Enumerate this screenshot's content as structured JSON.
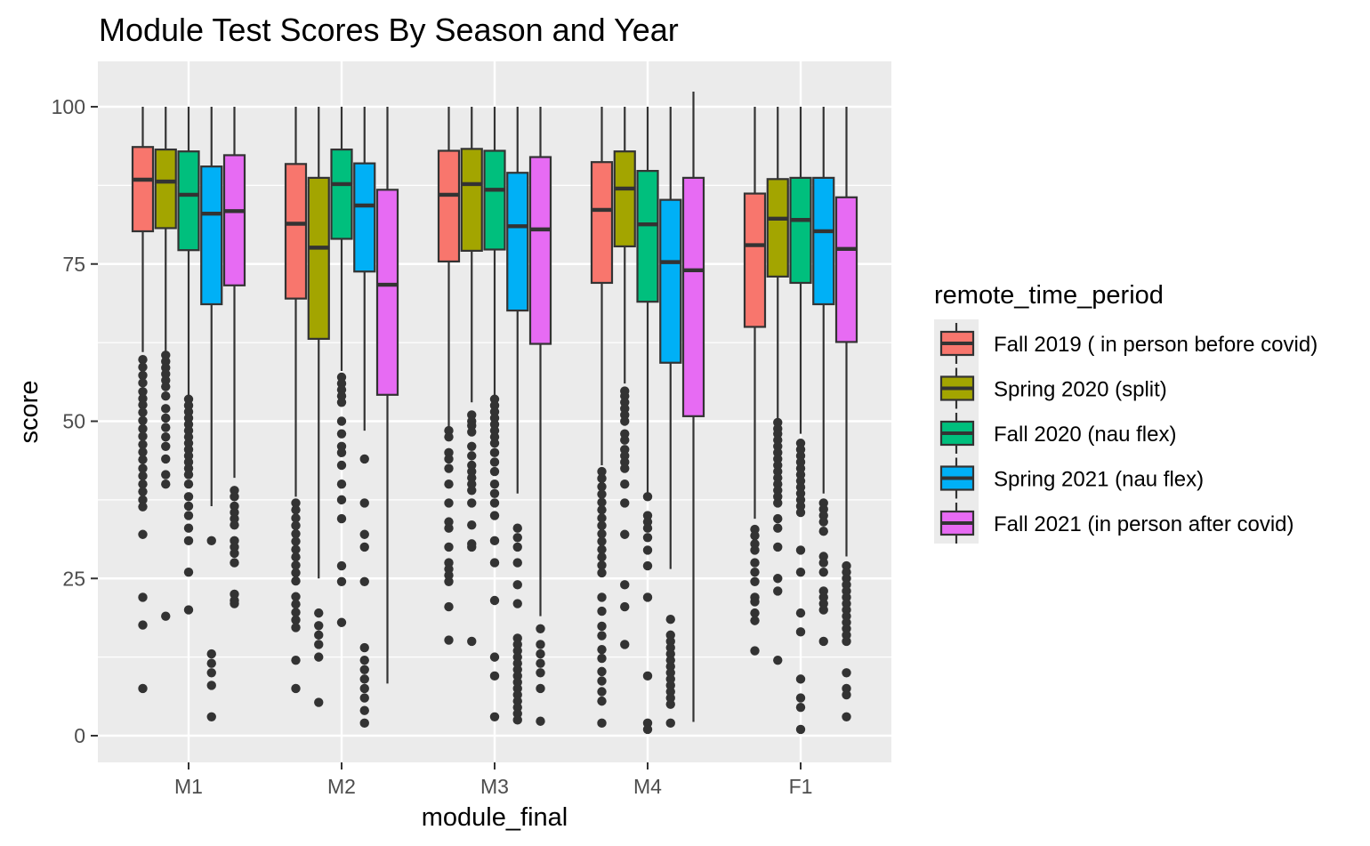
{
  "chart_data": {
    "type": "boxplot",
    "title": "Module Test Scores By Season and Year",
    "xlabel": "module_final",
    "ylabel": "score",
    "ylim": [
      -4,
      106
    ],
    "yticks": [
      0,
      25,
      50,
      75,
      100
    ],
    "categories": [
      "M1",
      "M2",
      "M3",
      "M4",
      "F1"
    ],
    "legend": {
      "title": "remote_time_period",
      "position": "right"
    },
    "grid": true,
    "series": [
      {
        "name": "Fall 2019 ( in person before covid)",
        "color": "#F8766D",
        "boxes": [
          {
            "category": "M1",
            "lower_whisker": 61,
            "q1": 80.2,
            "median": 88.4,
            "q3": 93.6,
            "upper_whisker": 100,
            "outliers": [
              59.8,
              58.6,
              57.3,
              56.1,
              54.7,
              53.6,
              52.6,
              51.4,
              50.1,
              48.8,
              47.6,
              46.3,
              45.1,
              43.9,
              42.5,
              41.3,
              40,
              38.8,
              37.5,
              36.4,
              32,
              22,
              17.6,
              7.5
            ]
          },
          {
            "category": "M2",
            "lower_whisker": 38,
            "q1": 69.5,
            "median": 81.4,
            "q3": 90.9,
            "upper_whisker": 100,
            "outliers": [
              37,
              35.9,
              34.6,
              33.4,
              32.1,
              30.9,
              29.6,
              28.4,
              27.1,
              25.9,
              24.6,
              22.1,
              20.9,
              19.6,
              18.4,
              17.2,
              12,
              7.5
            ]
          },
          {
            "category": "M3",
            "lower_whisker": 49,
            "q1": 75.4,
            "median": 86,
            "q3": 93,
            "upper_whisker": 100,
            "outliers": [
              48.5,
              47.5,
              45,
              44,
              42.5,
              40,
              37,
              34,
              33,
              30,
              27.5,
              26.5,
              25.5,
              24.5,
              20.5,
              15.2
            ]
          },
          {
            "category": "M4",
            "lower_whisker": 43,
            "q1": 72,
            "median": 83.6,
            "q3": 91.2,
            "upper_whisker": 100,
            "outliers": [
              42,
              40.9,
              39.6,
              38.4,
              37.1,
              35.9,
              34.6,
              33.4,
              32.1,
              30.9,
              29.6,
              28.4,
              27.1,
              25.9,
              22,
              19.8,
              17.4,
              15.9,
              13.7,
              12.3,
              10.2,
              8.7,
              7,
              5.5,
              2
            ]
          },
          {
            "category": "F1",
            "lower_whisker": 34.5,
            "q1": 65,
            "median": 78,
            "q3": 86.2,
            "upper_whisker": 100,
            "outliers": [
              32.8,
              31.8,
              30.5,
              29.5,
              27.5,
              26,
              24.5,
              22,
              21.3,
              19.5,
              18.3,
              13.5
            ]
          }
        ]
      },
      {
        "name": "Spring 2020 (split)",
        "color": "#A3A500",
        "boxes": [
          {
            "category": "M1",
            "lower_whisker": 61,
            "q1": 80.7,
            "median": 88.1,
            "q3": 93.2,
            "upper_whisker": 100,
            "outliers": [
              60.5,
              59.5,
              58.5,
              57.5,
              56.5,
              55.5,
              54,
              52,
              50.5,
              49,
              47.5,
              46,
              44,
              41.5,
              40,
              19
            ]
          },
          {
            "category": "M2",
            "lower_whisker": 25,
            "q1": 63.1,
            "median": 77.6,
            "q3": 88.7,
            "upper_whisker": 100,
            "outliers": [
              19.5,
              17.5,
              16,
              14.5,
              12.5,
              5.3
            ]
          },
          {
            "category": "M3",
            "lower_whisker": 53,
            "q1": 77.1,
            "median": 87.7,
            "q3": 93.3,
            "upper_whisker": 100,
            "outliers": [
              51,
              50,
              49.3,
              48.3,
              46,
              44.5,
              43,
              42,
              41,
              40,
              39,
              37,
              33.5,
              30.5,
              30,
              15
            ]
          },
          {
            "category": "M4",
            "lower_whisker": 56,
            "q1": 77.8,
            "median": 87,
            "q3": 92.9,
            "upper_whisker": 100,
            "outliers": [
              54.8,
              54,
              53,
              52,
              51,
              50,
              48,
              47,
              45.5,
              44.5,
              43.5,
              42.5,
              40,
              37,
              32,
              24,
              20.5,
              14.5
            ]
          },
          {
            "category": "F1",
            "lower_whisker": 50.5,
            "q1": 73,
            "median": 82.2,
            "q3": 88.5,
            "upper_whisker": 100,
            "outliers": [
              49.8,
              48.8,
              48,
              47,
              46,
              45,
              44,
              43,
              42,
              41,
              40,
              39,
              38,
              37,
              34.5,
              33,
              30,
              25,
              23,
              12
            ]
          }
        ]
      },
      {
        "name": "Fall 2020 (nau flex)",
        "color": "#00BF7D",
        "boxes": [
          {
            "category": "M1",
            "lower_whisker": 54,
            "q1": 77.2,
            "median": 86,
            "q3": 92.9,
            "upper_whisker": 100,
            "outliers": [
              53.5,
              52.5,
              51.5,
              50.5,
              49.5,
              48.5,
              47.5,
              46.5,
              45.5,
              44.5,
              43.5,
              42.5,
              41.5,
              40,
              38,
              36.5,
              35,
              33,
              31,
              26,
              20
            ]
          },
          {
            "category": "M2",
            "lower_whisker": 58,
            "q1": 79,
            "median": 87.7,
            "q3": 93.2,
            "upper_whisker": 100,
            "outliers": [
              57,
              56,
              55,
              54,
              53,
              50,
              48,
              46,
              45,
              43,
              40,
              37.5,
              34.5,
              27,
              24.5,
              18
            ]
          },
          {
            "category": "M3",
            "lower_whisker": 54,
            "q1": 77.3,
            "median": 86.8,
            "q3": 93,
            "upper_whisker": 100,
            "outliers": [
              53.5,
              52.5,
              51.5,
              50.5,
              49.5,
              48.5,
              47.5,
              46.5,
              45,
              43.5,
              42,
              40,
              38.5,
              37,
              35,
              31,
              27.5,
              21.5,
              12.5,
              9.5,
              3
            ]
          },
          {
            "category": "M4",
            "lower_whisker": 38.5,
            "q1": 69,
            "median": 81.3,
            "q3": 89.8,
            "upper_whisker": 100,
            "outliers": [
              38,
              35,
              34,
              33,
              31.5,
              29.5,
              27,
              22,
              9.5,
              2,
              1
            ]
          },
          {
            "category": "F1",
            "lower_whisker": 48,
            "q1": 72,
            "median": 82,
            "q3": 88.7,
            "upper_whisker": 100,
            "outliers": [
              46.5,
              45.5,
              44.5,
              43.5,
              42.5,
              41.5,
              40.5,
              39.5,
              38.5,
              37.5,
              36.5,
              35.5,
              29.5,
              26,
              19.5,
              16.5,
              9,
              6,
              4.5,
              1
            ]
          }
        ]
      },
      {
        "name": "Spring 2021 (nau flex)",
        "color": "#00B0F6",
        "boxes": [
          {
            "category": "M1",
            "lower_whisker": 36.5,
            "q1": 68.6,
            "median": 83,
            "q3": 90.5,
            "upper_whisker": 100,
            "outliers": [
              31,
              13,
              11.5,
              10,
              8,
              3
            ]
          },
          {
            "category": "M2",
            "lower_whisker": 48.5,
            "q1": 73.8,
            "median": 84.3,
            "q3": 91,
            "upper_whisker": 100,
            "outliers": [
              44,
              37,
              32,
              30,
              24.5,
              14,
              12,
              10.5,
              9,
              7.5,
              6,
              4,
              2
            ]
          },
          {
            "category": "M3",
            "lower_whisker": 38.5,
            "q1": 67.6,
            "median": 81,
            "q3": 89.5,
            "upper_whisker": 100,
            "outliers": [
              33,
              31.5,
              30,
              27.5,
              24,
              21,
              15.5,
              14.5,
              13.5,
              12.5,
              11.5,
              10.5,
              9.5,
              8.5,
              7.5,
              6.5,
              5.5,
              4.5,
              3.5,
              2.5
            ]
          },
          {
            "category": "M4",
            "lower_whisker": 26.5,
            "q1": 59.3,
            "median": 75.3,
            "q3": 85.2,
            "upper_whisker": 100,
            "outliers": [
              18.5,
              16,
              15,
              14,
              13,
              12,
              11,
              10,
              9,
              8,
              7,
              6,
              5,
              2
            ]
          },
          {
            "category": "F1",
            "lower_whisker": 38.5,
            "q1": 68.6,
            "median": 80.2,
            "q3": 88.7,
            "upper_whisker": 100,
            "outliers": [
              37,
              36,
              35,
              34,
              32.5,
              28.5,
              27.5,
              26,
              23,
              22,
              21,
              20,
              15
            ]
          }
        ]
      },
      {
        "name": "Fall 2021 (in person after covid)",
        "color": "#E76BF3",
        "boxes": [
          {
            "category": "M1",
            "lower_whisker": 41,
            "q1": 71.6,
            "median": 83.4,
            "q3": 92.3,
            "upper_whisker": 100,
            "outliers": [
              39,
              38,
              36.5,
              35.5,
              34.5,
              33.5,
              31,
              30,
              29,
              27.5,
              22.5,
              21.5,
              21
            ]
          },
          {
            "category": "M2",
            "lower_whisker": 8.3,
            "q1": 54.2,
            "median": 71.7,
            "q3": 86.8,
            "upper_whisker": 100,
            "outliers": []
          },
          {
            "category": "M3",
            "lower_whisker": 19,
            "q1": 62.3,
            "median": 80.5,
            "q3": 92,
            "upper_whisker": 100,
            "outliers": [
              17,
              14.5,
              13,
              11.5,
              10,
              7.5,
              2.3
            ]
          },
          {
            "category": "M4",
            "lower_whisker": 2.2,
            "q1": 50.8,
            "median": 74,
            "q3": 88.7,
            "upper_whisker": 102.4,
            "outliers": []
          },
          {
            "category": "F1",
            "lower_whisker": 28.5,
            "q1": 62.6,
            "median": 77.4,
            "q3": 85.6,
            "upper_whisker": 100,
            "outliers": [
              27,
              26,
              25,
              24,
              23,
              22,
              21,
              20,
              19,
              18,
              17,
              16,
              15,
              10,
              7.5,
              6.5,
              3
            ]
          }
        ]
      }
    ]
  }
}
